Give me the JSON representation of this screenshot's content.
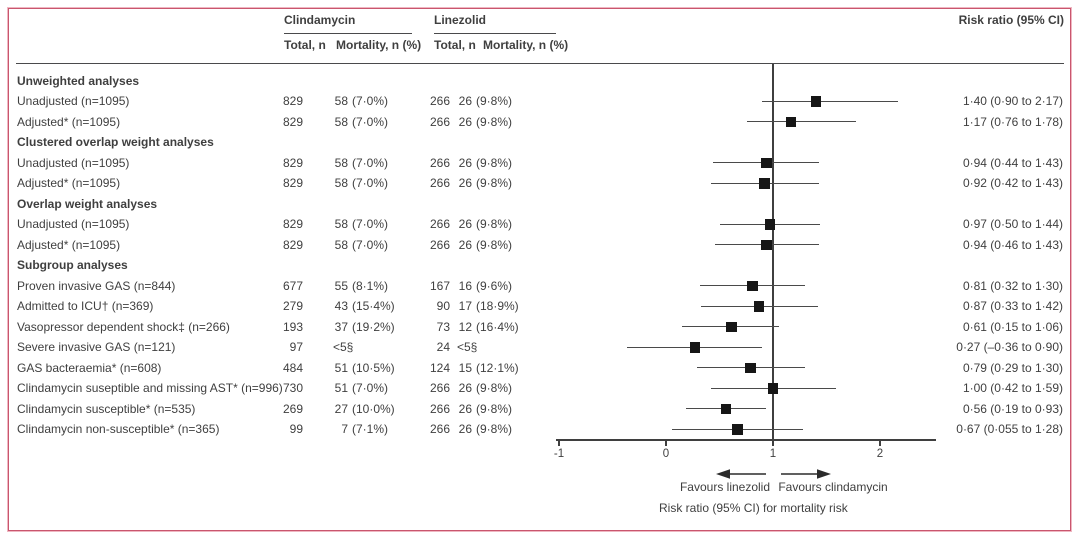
{
  "figure": {
    "columns": {
      "clindamycin": {
        "label": "Clindamycin",
        "total": "Total, n",
        "mortality": "Mortality, n (%)"
      },
      "linezolid": {
        "label": "Linezolid",
        "total": "Total, n",
        "mortality": "Mortality, n (%)"
      },
      "risk_ratio_header": "Risk ratio (95% CI)"
    },
    "favours_left": "Favours linezolid",
    "favours_right": "Favours clindamycin",
    "colors": {
      "frame_border": "#c9566e",
      "frame_halo": "#efb6c1",
      "text": "#3f3f3f",
      "marker": "#161616",
      "ci_line": "#4a4a4a"
    }
  },
  "chart_data": {
    "type": "forest",
    "xlabel": "Risk ratio (95% CI) for mortality risk",
    "axis": {
      "tick_values": [
        -1,
        0,
        1,
        2
      ],
      "tick_labels": [
        "-1",
        "0",
        "1",
        "2"
      ],
      "xlim": [
        -1.03,
        2.52
      ],
      "reference_line": 1
    },
    "rows": [
      {
        "type": "section",
        "label": "Unweighted analyses"
      },
      {
        "type": "data",
        "label": "Unadjusted (n=1095)",
        "clin_total": "829",
        "clin_mort_n": "58",
        "clin_mort_pct": "(7·0%)",
        "lin_total": "266",
        "lin_mort_n": "26",
        "lin_mort_pct": "(9·8%)",
        "rr_label": "1·40 (0·90 to 2·17)",
        "est": 1.4,
        "lo": 0.9,
        "hi": 2.17
      },
      {
        "type": "data",
        "label": "Adjusted* (n=1095)",
        "clin_total": "829",
        "clin_mort_n": "58",
        "clin_mort_pct": "(7·0%)",
        "lin_total": "266",
        "lin_mort_n": "26",
        "lin_mort_pct": "(9·8%)",
        "rr_label": "1·17 (0·76 to 1·78)",
        "est": 1.17,
        "lo": 0.76,
        "hi": 1.78
      },
      {
        "type": "section",
        "label": "Clustered overlap weight analyses"
      },
      {
        "type": "data",
        "label": "Unadjusted (n=1095)",
        "clin_total": "829",
        "clin_mort_n": "58",
        "clin_mort_pct": "(7·0%)",
        "lin_total": "266",
        "lin_mort_n": "26",
        "lin_mort_pct": "(9·8%)",
        "rr_label": "0·94 (0·44 to 1·43)",
        "est": 0.94,
        "lo": 0.44,
        "hi": 1.43
      },
      {
        "type": "data",
        "label": "Adjusted* (n=1095)",
        "clin_total": "829",
        "clin_mort_n": "58",
        "clin_mort_pct": "(7·0%)",
        "lin_total": "266",
        "lin_mort_n": "26",
        "lin_mort_pct": "(9·8%)",
        "rr_label": "0·92 (0·42 to 1·43)",
        "est": 0.92,
        "lo": 0.42,
        "hi": 1.43
      },
      {
        "type": "section",
        "label": "Overlap weight analyses"
      },
      {
        "type": "data",
        "label": "Unadjusted (n=1095)",
        "clin_total": "829",
        "clin_mort_n": "58",
        "clin_mort_pct": "(7·0%)",
        "lin_total": "266",
        "lin_mort_n": "26",
        "lin_mort_pct": "(9·8%)",
        "rr_label": "0·97 (0·50 to 1·44)",
        "est": 0.97,
        "lo": 0.5,
        "hi": 1.44
      },
      {
        "type": "data",
        "label": "Adjusted* (n=1095)",
        "clin_total": "829",
        "clin_mort_n": "58",
        "clin_mort_pct": "(7·0%)",
        "lin_total": "266",
        "lin_mort_n": "26",
        "lin_mort_pct": "(9·8%)",
        "rr_label": "0·94 (0·46 to 1·43)",
        "est": 0.94,
        "lo": 0.46,
        "hi": 1.43
      },
      {
        "type": "section",
        "label": "Subgroup analyses"
      },
      {
        "type": "data",
        "label": "Proven invasive GAS (n=844)",
        "clin_total": "677",
        "clin_mort_n": "55",
        "clin_mort_pct": "(8·1%)",
        "lin_total": "167",
        "lin_mort_n": "16",
        "lin_mort_pct": "(9·6%)",
        "rr_label": "0·81 (0·32 to 1·30)",
        "est": 0.81,
        "lo": 0.32,
        "hi": 1.3
      },
      {
        "type": "data",
        "label": "Admitted to ICU† (n=369)",
        "clin_total": "279",
        "clin_mort_n": "43",
        "clin_mort_pct": "(15·4%)",
        "lin_total": "90",
        "lin_mort_n": "17",
        "lin_mort_pct": "(18·9%)",
        "rr_label": "0·87 (0·33 to 1·42)",
        "est": 0.87,
        "lo": 0.33,
        "hi": 1.42
      },
      {
        "type": "data",
        "label": "Vasopressor dependent shock‡ (n=266)",
        "clin_total": "193",
        "clin_mort_n": "37",
        "clin_mort_pct": "(19·2%)",
        "lin_total": "73",
        "lin_mort_n": "12",
        "lin_mort_pct": "(16·4%)",
        "rr_label": "0·61 (0·15 to 1·06)",
        "est": 0.61,
        "lo": 0.15,
        "hi": 1.06
      },
      {
        "type": "data",
        "label": "Severe invasive GAS (n=121)",
        "clin_total": "97",
        "clin_mort_n": "<5§",
        "clin_mort_pct": "",
        "lin_total": "24",
        "lin_mort_n": "<5§",
        "lin_mort_pct": "",
        "rr_label": "0·27 (–0·36 to 0·90)",
        "est": 0.27,
        "lo": -0.36,
        "hi": 0.9
      },
      {
        "type": "data",
        "label": "GAS bacteraemia* (n=608)",
        "clin_total": "484",
        "clin_mort_n": "51",
        "clin_mort_pct": "(10·5%)",
        "lin_total": "124",
        "lin_mort_n": "15",
        "lin_mort_pct": "(12·1%)",
        "rr_label": "0·79 (0·29 to 1·30)",
        "est": 0.79,
        "lo": 0.29,
        "hi": 1.3
      },
      {
        "type": "data",
        "label": "Clindamycin suseptible and missing AST* (n=996)",
        "clin_total": "730",
        "clin_mort_n": "51",
        "clin_mort_pct": "(7·0%)",
        "lin_total": "266",
        "lin_mort_n": "26",
        "lin_mort_pct": "(9·8%)",
        "rr_label": "1·00 (0·42 to 1·59)",
        "est": 1.0,
        "lo": 0.42,
        "hi": 1.59
      },
      {
        "type": "data",
        "label": "Clindamycin susceptible* (n=535)",
        "clin_total": "269",
        "clin_mort_n": "27",
        "clin_mort_pct": "(10·0%)",
        "lin_total": "266",
        "lin_mort_n": "26",
        "lin_mort_pct": "(9·8%)",
        "rr_label": "0·56 (0·19 to 0·93)",
        "est": 0.56,
        "lo": 0.19,
        "hi": 0.93
      },
      {
        "type": "data",
        "label": "Clindamycin non-susceptible* (n=365)",
        "clin_total": "99",
        "clin_mort_n": "7",
        "clin_mort_pct": "(7·1%)",
        "lin_total": "266",
        "lin_mort_n": "26",
        "lin_mort_pct": "(9·8%)",
        "rr_label": "0·67 (0·055 to 1·28)",
        "est": 0.67,
        "lo": 0.055,
        "hi": 1.28
      }
    ]
  }
}
